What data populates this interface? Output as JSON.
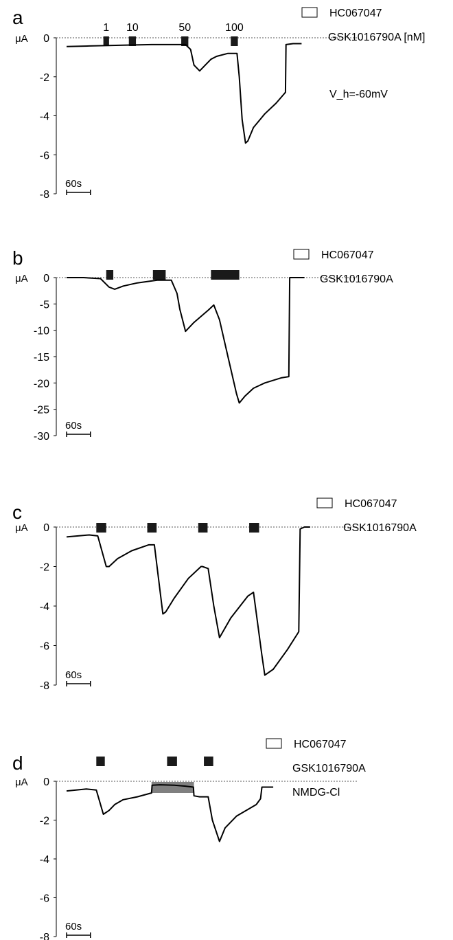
{
  "figure": {
    "y_unit_label": "μA",
    "scale_bar_label": "60s",
    "legend_box_label": "HC067047",
    "colors": {
      "trace": "#000000",
      "drug_bar": "#1a1a1a",
      "nmdg_bar": "#808080",
      "zero_line": "#555555"
    }
  },
  "chart_data": [
    {
      "type": "line",
      "panel_letter": "a",
      "ylim": [
        -8,
        0
      ],
      "y_ticks": [
        "0",
        "-2",
        "-4",
        "-6",
        "-8"
      ],
      "y_tick_values": [
        0,
        -2,
        -4,
        -6,
        -8
      ],
      "x_range_s": [
        0,
        880
      ],
      "legend": [
        "HC067047",
        "GSK1016790A [nM]"
      ],
      "annotation": "V_h=-60mV",
      "drug_applications": [
        {
          "label": "1",
          "start_s": 130,
          "end_s": 150
        },
        {
          "label": "10",
          "start_s": 220,
          "end_s": 245
        },
        {
          "label": "50",
          "start_s": 405,
          "end_s": 430
        },
        {
          "label": "100",
          "start_s": 580,
          "end_s": 605
        }
      ],
      "series": [
        {
          "x": [
            0,
            80,
            200,
            300,
            420,
            438,
            450,
            470,
            490,
            510,
            530,
            570,
            602,
            610,
            620,
            632,
            640,
            660,
            700,
            740,
            773,
            775,
            800,
            830
          ],
          "y": [
            -0.45,
            -0.42,
            -0.38,
            -0.35,
            -0.35,
            -0.6,
            -1.4,
            -1.7,
            -1.4,
            -1.1,
            -0.95,
            -0.8,
            -0.8,
            -2.0,
            -4.2,
            -5.4,
            -5.3,
            -4.6,
            -3.9,
            -3.35,
            -2.8,
            -0.35,
            -0.3,
            -0.3
          ]
        }
      ]
    },
    {
      "type": "line",
      "panel_letter": "b",
      "ylim": [
        -30,
        0
      ],
      "y_ticks": [
        "0",
        "-5",
        "-10",
        "-15",
        "-20",
        "-25",
        "-30"
      ],
      "y_tick_values": [
        0,
        -5,
        -10,
        -15,
        -20,
        -25,
        -30
      ],
      "x_range_s": [
        0,
        880
      ],
      "legend": [
        "HC067047",
        "GSK1016790A"
      ],
      "drug_applications": [
        {
          "start_s": 140,
          "end_s": 165
        },
        {
          "start_s": 305,
          "end_s": 350
        },
        {
          "start_s": 510,
          "end_s": 610
        }
      ],
      "series": [
        {
          "x": [
            0,
            60,
            120,
            150,
            170,
            200,
            250,
            320,
            370,
            390,
            400,
            420,
            450,
            500,
            520,
            540,
            570,
            600,
            610,
            630,
            660,
            700,
            760,
            785,
            788,
            800,
            840
          ],
          "y": [
            0,
            0,
            -0.2,
            -1.8,
            -2.2,
            -1.6,
            -1.0,
            -0.5,
            -0.5,
            -3,
            -6,
            -10.2,
            -8.5,
            -6.2,
            -5.2,
            -8,
            -15,
            -22,
            -23.8,
            -22.5,
            -21,
            -20,
            -19,
            -18.8,
            0,
            0,
            0
          ]
        }
      ]
    },
    {
      "type": "line",
      "panel_letter": "c",
      "ylim": [
        -8,
        0
      ],
      "y_ticks": [
        "0",
        "-2",
        "-4",
        "-6",
        "-8"
      ],
      "y_tick_values": [
        0,
        -2,
        -4,
        -6,
        -8
      ],
      "x_range_s": [
        0,
        880
      ],
      "legend": [
        "HC067047",
        "GSK1016790A"
      ],
      "drug_applications": [
        {
          "start_s": 105,
          "end_s": 140
        },
        {
          "start_s": 285,
          "end_s": 318
        },
        {
          "start_s": 465,
          "end_s": 498
        },
        {
          "start_s": 645,
          "end_s": 680
        }
      ],
      "series": [
        {
          "x": [
            0,
            80,
            110,
            140,
            150,
            180,
            230,
            290,
            310,
            340,
            350,
            380,
            430,
            475,
            480,
            500,
            520,
            540,
            580,
            640,
            660,
            690,
            700,
            730,
            780,
            820,
            825,
            840,
            860
          ],
          "y": [
            -0.5,
            -0.4,
            -0.45,
            -2.0,
            -2.0,
            -1.6,
            -1.2,
            -0.9,
            -0.9,
            -4.4,
            -4.3,
            -3.6,
            -2.6,
            -2.0,
            -2.0,
            -2.1,
            -4.0,
            -5.6,
            -4.6,
            -3.5,
            -3.3,
            -6.5,
            -7.5,
            -7.2,
            -6.2,
            -5.3,
            -0.1,
            0,
            0
          ]
        }
      ]
    },
    {
      "type": "line",
      "panel_letter": "d",
      "ylim": [
        -8,
        0
      ],
      "y_ticks": [
        "0",
        "-2",
        "-4",
        "-6",
        "-8"
      ],
      "y_tick_values": [
        0,
        -2,
        -4,
        -6,
        -8
      ],
      "x_range_s": [
        0,
        880
      ],
      "legend": [
        "HC067047",
        "GSK1016790A",
        "NMDG-Cl"
      ],
      "drug_applications": [
        {
          "start_s": 105,
          "end_s": 135
        },
        {
          "start_s": 355,
          "end_s": 390
        },
        {
          "start_s": 485,
          "end_s": 518
        }
      ],
      "nmdg_application": {
        "start_s": 300,
        "end_s": 450
      },
      "series": [
        {
          "x": [
            0,
            70,
            105,
            130,
            150,
            170,
            200,
            250,
            300,
            302,
            330,
            380,
            420,
            448,
            450,
            470,
            500,
            515,
            540,
            560,
            600,
            670,
            685,
            690,
            730
          ],
          "y": [
            -0.5,
            -0.4,
            -0.45,
            -1.7,
            -1.5,
            -1.2,
            -0.95,
            -0.8,
            -0.6,
            -0.2,
            -0.18,
            -0.2,
            -0.25,
            -0.3,
            -0.75,
            -0.8,
            -0.8,
            -2.0,
            -3.1,
            -2.4,
            -1.8,
            -1.2,
            -0.9,
            -0.3,
            -0.3
          ]
        }
      ]
    }
  ]
}
